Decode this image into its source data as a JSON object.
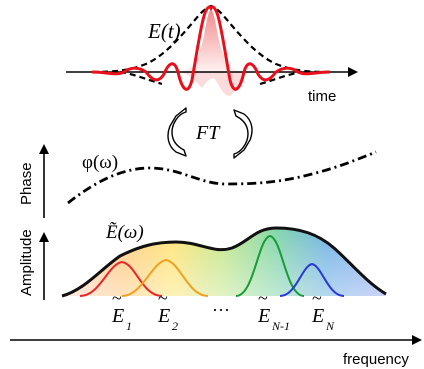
{
  "time_domain": {
    "field_label": "E(t)",
    "axis_label": "time"
  },
  "transform": {
    "label": "FT"
  },
  "phase_panel": {
    "axis_label": "Phase",
    "curve_label": "φ(ω)"
  },
  "amplitude_panel": {
    "axis_label": "Amplitude",
    "envelope_label": "Ẽ(ω)",
    "ellipsis": "···",
    "component_labels": [
      {
        "base": "E",
        "sub": "1"
      },
      {
        "base": "E",
        "sub": "2"
      },
      {
        "base": "E",
        "sub": "N-1"
      },
      {
        "base": "E",
        "sub": "N"
      }
    ]
  },
  "frequency_axis": {
    "label": "frequency"
  },
  "colors": {
    "pulse_fill": "#f08080",
    "pulse_line": "#e8101a",
    "envelope_line": "#111111",
    "component_1": "#e8262a",
    "component_2": "#f0a020",
    "component_n_minus_1": "#1a9a3a",
    "component_n": "#2a3ad8"
  }
}
